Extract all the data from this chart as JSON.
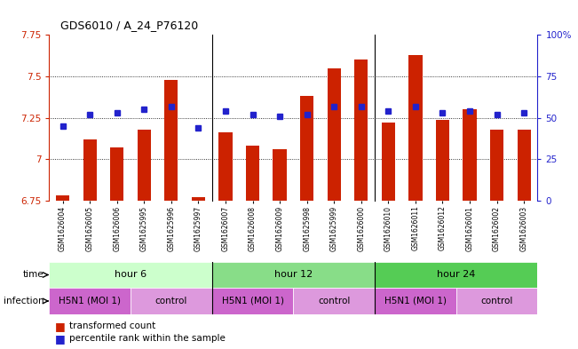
{
  "title": "GDS6010 / A_24_P76120",
  "samples": [
    "GSM1626004",
    "GSM1626005",
    "GSM1626006",
    "GSM1625995",
    "GSM1625996",
    "GSM1625997",
    "GSM1626007",
    "GSM1626008",
    "GSM1626009",
    "GSM1625998",
    "GSM1625999",
    "GSM1626000",
    "GSM1626010",
    "GSM1626011",
    "GSM1626012",
    "GSM1626001",
    "GSM1626002",
    "GSM1626003"
  ],
  "bar_values": [
    6.78,
    7.12,
    7.07,
    7.18,
    7.48,
    6.77,
    7.16,
    7.08,
    7.06,
    7.38,
    7.55,
    7.6,
    7.22,
    7.63,
    7.24,
    7.3,
    7.18,
    7.18
  ],
  "blue_values": [
    45,
    52,
    53,
    55,
    57,
    44,
    54,
    52,
    51,
    52,
    57,
    57,
    54,
    57,
    53,
    54,
    52,
    53
  ],
  "ylim_left": [
    6.75,
    7.75
  ],
  "ylim_right": [
    0,
    100
  ],
  "yticks_left": [
    6.75,
    7.0,
    7.25,
    7.5,
    7.75
  ],
  "ytick_labels_left": [
    "6.75",
    "7",
    "7.25",
    "7.5",
    "7.75"
  ],
  "yticks_right": [
    0,
    25,
    50,
    75,
    100
  ],
  "ytick_labels_right": [
    "0",
    "25",
    "50",
    "75",
    "100%"
  ],
  "bar_color": "#cc2200",
  "blue_color": "#2222cc",
  "bar_baseline": 6.75,
  "dotted_yticks": [
    7.0,
    7.25,
    7.5
  ],
  "time_groups": [
    {
      "label": "hour 6",
      "start": 0,
      "end": 6,
      "color": "#ccffcc"
    },
    {
      "label": "hour 12",
      "start": 6,
      "end": 12,
      "color": "#88dd88"
    },
    {
      "label": "hour 24",
      "start": 12,
      "end": 18,
      "color": "#55cc55"
    }
  ],
  "infection_groups": [
    {
      "label": "H5N1 (MOI 1)",
      "start": 0,
      "end": 3,
      "color": "#cc66cc"
    },
    {
      "label": "control",
      "start": 3,
      "end": 6,
      "color": "#dd99dd"
    },
    {
      "label": "H5N1 (MOI 1)",
      "start": 6,
      "end": 9,
      "color": "#cc66cc"
    },
    {
      "label": "control",
      "start": 9,
      "end": 12,
      "color": "#dd99dd"
    },
    {
      "label": "H5N1 (MOI 1)",
      "start": 12,
      "end": 15,
      "color": "#cc66cc"
    },
    {
      "label": "control",
      "start": 15,
      "end": 18,
      "color": "#dd99dd"
    }
  ]
}
